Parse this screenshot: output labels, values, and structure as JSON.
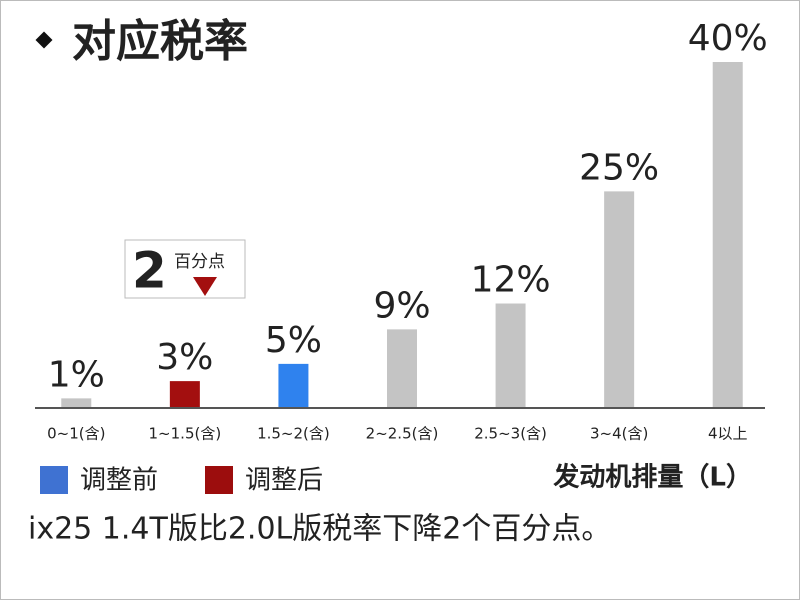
{
  "chart_data": {
    "type": "bar",
    "title": "对应税率",
    "categories": [
      "0~1(含)",
      "1~1.5(含)",
      "1.5~2(含)",
      "2~2.5(含)",
      "2.5~3(含)",
      "3~4(含)",
      "4以上"
    ],
    "values": [
      1,
      3,
      5,
      9,
      12,
      25,
      40
    ],
    "value_labels": [
      "1%",
      "3%",
      "5%",
      "9%",
      "12%",
      "25%",
      "40%"
    ],
    "colors": [
      "#c4c4c4",
      "#a30f0f",
      "#2f82ee",
      "#c4c4c4",
      "#c4c4c4",
      "#c4c4c4",
      "#c4c4c4"
    ],
    "legend": [
      {
        "label": "调整前",
        "color": "#3f72d2"
      },
      {
        "label": "调整后",
        "color": "#9c0d0d"
      }
    ],
    "x_label": "发动机排量（L）",
    "annotation": {
      "value": 2,
      "label": "百分点"
    },
    "note": "ix25 1.4T版比2.0L版税率下降2个百分点。"
  }
}
